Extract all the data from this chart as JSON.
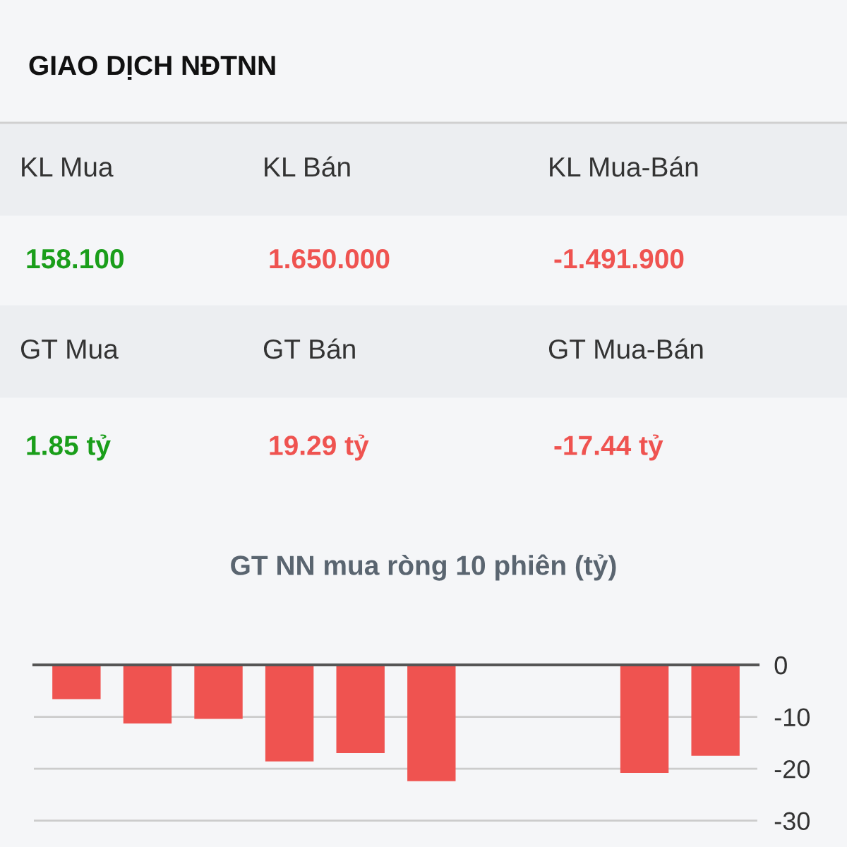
{
  "chart_data": [
    {
      "type": "other",
      "title": "GIAO DỊCH NĐTNN",
      "annotations": [
        "KL Mua",
        "KL Bán",
        "KL Mua-Bán",
        "158.100",
        "1.650.000",
        "-1.491.900",
        "GT Mua",
        "GT Bán",
        "GT Mua-Bán",
        "1.85 tỷ",
        "19.29 tỷ",
        "-17.44 tỷ"
      ],
      "colors": [
        "#333333",
        "#333333",
        "#333333",
        "#1a9e1a",
        "#ef5350",
        "#ef5350",
        "#333333",
        "#333333",
        "#333333",
        "#1a9e1a",
        "#ef5350",
        "#ef5350"
      ]
    },
    {
      "type": "bar",
      "title": "GT NN mua ròng 10 phiên (tỷ)",
      "categories": [
        null,
        null,
        null,
        null,
        null,
        null,
        null,
        null,
        null,
        null
      ],
      "values": [
        -6.6,
        -11.3,
        -10.4,
        -18.6,
        -17.0,
        -22.4,
        null,
        null,
        -20.8,
        -17.5
      ],
      "color": "#ef5350",
      "ylim": [
        -31,
        0
      ],
      "yticks": [
        0,
        -10,
        -20,
        -30
      ],
      "grid": "y"
    }
  ]
}
